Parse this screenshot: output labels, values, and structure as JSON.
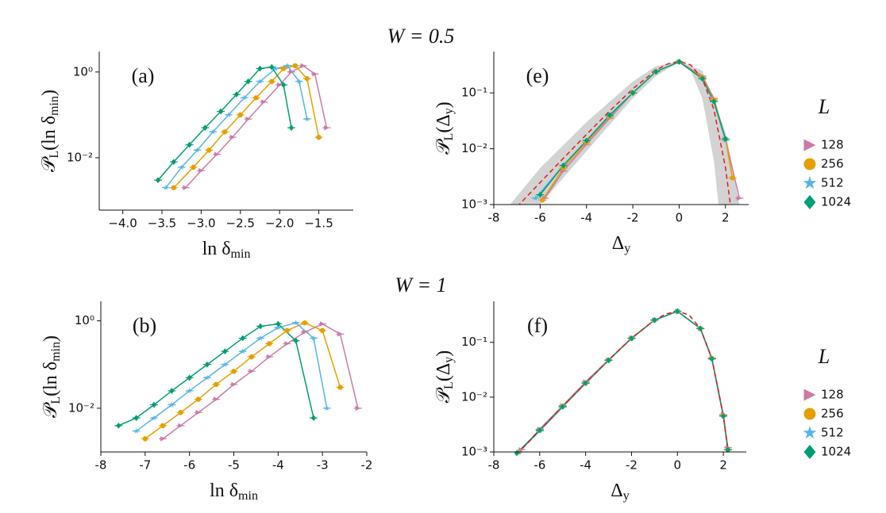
{
  "row_titles": [
    "W = 0.5",
    "W = 1"
  ],
  "chart_data": [
    {
      "type": "scatter",
      "panel": "(a)",
      "log_y": true,
      "xlabel": [
        "ln δ",
        "min"
      ],
      "ylabel": [
        "𝒫",
        "L",
        "(ln δ",
        "min",
        ")"
      ],
      "xlim": [
        -4.3,
        -1.06
      ],
      "ylim": [
        0.0006,
        3
      ],
      "xticks": [
        {
          "value": -4,
          "label": "−4.0"
        },
        {
          "value": -3.5,
          "label": "−3.5"
        },
        {
          "value": -3,
          "label": "−3.0"
        },
        {
          "value": -2.5,
          "label": "−2.5"
        },
        {
          "value": -2,
          "label": "−2.0"
        },
        {
          "value": -1.5,
          "label": "−1.5"
        }
      ],
      "yticks": [
        {
          "value": 0.01,
          "label": "10⁻²"
        },
        {
          "value": 1,
          "label": "10⁰"
        }
      ],
      "series": [
        {
          "name": "128",
          "color": "#cc79a7",
          "marker": "triangle",
          "x": [
            -3.2,
            -3.0,
            -2.8,
            -2.6,
            -2.4,
            -2.2,
            -2.0,
            -1.85,
            -1.7,
            -1.55,
            -1.4
          ],
          "values": [
            0.002,
            0.005,
            0.012,
            0.03,
            0.08,
            0.2,
            0.5,
            1.0,
            1.4,
            0.9,
            0.05
          ]
        },
        {
          "name": "256",
          "color": "#e69f00",
          "marker": "circle",
          "x": [
            -3.35,
            -3.1,
            -2.9,
            -2.7,
            -2.5,
            -2.3,
            -2.1,
            -1.95,
            -1.8,
            -1.65,
            -1.5
          ],
          "values": [
            0.002,
            0.006,
            0.015,
            0.04,
            0.1,
            0.25,
            0.6,
            1.2,
            1.4,
            0.7,
            0.03
          ]
        },
        {
          "name": "512",
          "color": "#56b4e9",
          "marker": "star",
          "x": [
            -3.45,
            -3.25,
            -3.05,
            -2.85,
            -2.65,
            -2.45,
            -2.25,
            -2.05,
            -1.9,
            -1.75,
            -1.65
          ],
          "values": [
            0.002,
            0.006,
            0.015,
            0.04,
            0.1,
            0.25,
            0.6,
            1.2,
            1.4,
            0.6,
            0.08
          ]
        },
        {
          "name": "1024",
          "color": "#009e73",
          "marker": "diamond",
          "x": [
            -3.55,
            -3.35,
            -3.15,
            -2.95,
            -2.75,
            -2.55,
            -2.4,
            -2.25,
            -2.1,
            -1.95,
            -1.85
          ],
          "values": [
            0.003,
            0.008,
            0.02,
            0.05,
            0.12,
            0.3,
            0.6,
            1.2,
            1.3,
            0.5,
            0.05
          ]
        }
      ]
    },
    {
      "type": "scatter",
      "panel": "(e)",
      "log_y": true,
      "legend": true,
      "legend_title": "L",
      "xlabel": [
        "Δ",
        "y"
      ],
      "ylabel": [
        "𝒫",
        "L",
        "(Δ",
        "y",
        ")"
      ],
      "xlim": [
        -8,
        3
      ],
      "ylim": [
        0.001,
        0.55
      ],
      "xticks": [
        -8,
        -6,
        -4,
        -2,
        0,
        2
      ],
      "yticks": [
        {
          "value": 0.001,
          "label": "10⁻³"
        },
        {
          "value": 0.01,
          "label": "10⁻²"
        },
        {
          "value": 0.1,
          "label": "10⁻¹"
        }
      ],
      "band": {
        "color": "#d3d3d3",
        "upper": {
          "x": [
            -7.3,
            -6,
            -4,
            -2,
            -1,
            0,
            1,
            2,
            2.6
          ],
          "values": [
            0.001,
            0.0045,
            0.03,
            0.16,
            0.3,
            0.37,
            0.25,
            0.02,
            0.001
          ]
        },
        "lower": {
          "x": [
            -6,
            -4,
            -2,
            -1,
            0,
            0.5,
            1,
            1.5,
            1.7
          ],
          "values": [
            0.001,
            0.009,
            0.08,
            0.2,
            0.36,
            0.25,
            0.08,
            0.006,
            0.001
          ]
        }
      },
      "reference": {
        "color": "#e41a1c",
        "x": [
          -7,
          -6,
          -5,
          -4,
          -3,
          -2,
          -1,
          -0.5,
          0,
          0.5,
          1,
          1.5,
          2,
          2.2
        ],
        "values": [
          0.00091,
          0.00248,
          0.00674,
          0.018,
          0.0474,
          0.1182,
          0.2546,
          0.3297,
          0.3679,
          0.317,
          0.1794,
          0.0507,
          0.00457,
          0.00109
        ]
      },
      "series": [
        {
          "name": "128",
          "color": "#cc79a7",
          "marker": "triangle",
          "x": [
            -5.8,
            -5,
            -4,
            -3,
            -2,
            -1,
            0,
            1,
            1.5,
            2,
            2.6
          ],
          "values": [
            0.0013,
            0.004,
            0.012,
            0.035,
            0.1,
            0.24,
            0.36,
            0.2,
            0.08,
            0.015,
            0.0013
          ]
        },
        {
          "name": "256",
          "color": "#e69f00",
          "marker": "circle",
          "x": [
            -5.9,
            -5,
            -4,
            -3,
            -2,
            -1,
            0,
            1,
            1.5,
            2,
            2.3
          ],
          "values": [
            0.0012,
            0.0045,
            0.013,
            0.037,
            0.1,
            0.24,
            0.36,
            0.19,
            0.075,
            0.015,
            0.003
          ]
        },
        {
          "name": "512",
          "color": "#56b4e9",
          "marker": "star",
          "x": [
            -6.2,
            -5,
            -4,
            -3,
            -2,
            -1,
            0,
            1,
            1.5,
            2
          ],
          "values": [
            0.0013,
            0.005,
            0.014,
            0.038,
            0.1,
            0.24,
            0.36,
            0.18,
            0.07,
            0.014
          ]
        },
        {
          "name": "1024",
          "color": "#009e73",
          "marker": "diamond",
          "x": [
            -6.0,
            -5,
            -4,
            -3,
            -2,
            -1,
            0,
            1,
            1.5,
            2
          ],
          "values": [
            0.0015,
            0.005,
            0.014,
            0.04,
            0.1,
            0.24,
            0.36,
            0.18,
            0.07,
            0.015
          ]
        }
      ]
    },
    {
      "type": "scatter",
      "panel": "(b)",
      "log_y": true,
      "xlabel": [
        "ln δ",
        "min"
      ],
      "ylabel": [
        "𝒫",
        "L",
        "(ln δ",
        "min",
        ")"
      ],
      "xlim": [
        -8,
        -2
      ],
      "ylim": [
        0.001,
        2.8
      ],
      "xticks": [
        -8,
        -7,
        -6,
        -5,
        -4,
        -3,
        -2
      ],
      "yticks": [
        {
          "value": 0.01,
          "label": "10⁻²"
        },
        {
          "value": 1,
          "label": "10⁰"
        }
      ],
      "series": [
        {
          "name": "128",
          "color": "#cc79a7",
          "marker": "triangle",
          "x": [
            -6.6,
            -6.2,
            -5.8,
            -5.4,
            -5.0,
            -4.6,
            -4.2,
            -3.8,
            -3.4,
            -3.0,
            -2.6,
            -2.2
          ],
          "values": [
            0.002,
            0.004,
            0.008,
            0.016,
            0.035,
            0.07,
            0.15,
            0.3,
            0.55,
            0.85,
            0.5,
            0.01
          ]
        },
        {
          "name": "256",
          "color": "#e69f00",
          "marker": "circle",
          "x": [
            -7.0,
            -6.6,
            -6.2,
            -5.8,
            -5.4,
            -5.0,
            -4.6,
            -4.2,
            -3.8,
            -3.4,
            -3.0,
            -2.6
          ],
          "values": [
            0.002,
            0.004,
            0.008,
            0.016,
            0.035,
            0.07,
            0.15,
            0.3,
            0.6,
            0.9,
            0.6,
            0.03
          ]
        },
        {
          "name": "512",
          "color": "#56b4e9",
          "marker": "star",
          "x": [
            -7.2,
            -6.8,
            -6.4,
            -6.0,
            -5.6,
            -5.2,
            -4.8,
            -4.4,
            -4.0,
            -3.6,
            -3.2,
            -2.9
          ],
          "values": [
            0.003,
            0.006,
            0.012,
            0.025,
            0.05,
            0.1,
            0.2,
            0.4,
            0.7,
            0.9,
            0.4,
            0.01
          ]
        },
        {
          "name": "1024",
          "color": "#009e73",
          "marker": "diamond",
          "x": [
            -7.6,
            -7.2,
            -6.8,
            -6.4,
            -6.0,
            -5.6,
            -5.2,
            -4.8,
            -4.4,
            -4.0,
            -3.6,
            -3.2
          ],
          "values": [
            0.004,
            0.006,
            0.012,
            0.025,
            0.05,
            0.1,
            0.2,
            0.4,
            0.75,
            0.85,
            0.35,
            0.006
          ]
        }
      ]
    },
    {
      "type": "scatter",
      "panel": "(f)",
      "log_y": true,
      "legend": true,
      "legend_title": "L",
      "xlabel": [
        "Δ",
        "y"
      ],
      "ylabel": [
        "𝒫",
        "L",
        "(Δ",
        "y",
        ")"
      ],
      "xlim": [
        -8,
        3
      ],
      "ylim": [
        0.001,
        0.56
      ],
      "xticks": [
        -8,
        -6,
        -4,
        -2,
        0,
        2
      ],
      "yticks": [
        {
          "value": 0.001,
          "label": "10⁻³"
        },
        {
          "value": 0.01,
          "label": "10⁻²"
        },
        {
          "value": 0.1,
          "label": "10⁻¹"
        }
      ],
      "reference": {
        "color": "#e41a1c",
        "x": [
          -7,
          -6,
          -5,
          -4,
          -3,
          -2,
          -1,
          -0.5,
          0,
          0.5,
          1,
          1.5,
          2,
          2.2
        ],
        "values": [
          0.00091,
          0.00248,
          0.00674,
          0.018,
          0.0474,
          0.1182,
          0.2546,
          0.3297,
          0.3679,
          0.317,
          0.1794,
          0.0507,
          0.00457,
          0.00109
        ]
      },
      "series": [
        {
          "name": "128",
          "color": "#cc79a7",
          "marker": "triangle",
          "x": [
            -6.8,
            -6,
            -5,
            -4,
            -3,
            -2,
            -1,
            0,
            1,
            1.5,
            2,
            2.2
          ],
          "values": [
            0.0011,
            0.0026,
            0.007,
            0.019,
            0.048,
            0.12,
            0.255,
            0.37,
            0.18,
            0.052,
            0.0048,
            0.0012
          ]
        },
        {
          "name": "256",
          "color": "#e69f00",
          "marker": "circle",
          "x": [
            -6.9,
            -6,
            -5,
            -4,
            -3,
            -2,
            -1,
            0,
            1,
            1.5,
            2,
            2.2
          ],
          "values": [
            0.001,
            0.0025,
            0.0068,
            0.018,
            0.047,
            0.118,
            0.254,
            0.368,
            0.179,
            0.051,
            0.0046,
            0.0011
          ]
        },
        {
          "name": "512",
          "color": "#56b4e9",
          "marker": "star",
          "x": [
            -6.9,
            -6,
            -5,
            -4,
            -3,
            -2,
            -1,
            0,
            1,
            1.5,
            2,
            2.2
          ],
          "values": [
            0.001,
            0.0024,
            0.0066,
            0.018,
            0.047,
            0.118,
            0.254,
            0.367,
            0.178,
            0.05,
            0.0045,
            0.0011
          ]
        },
        {
          "name": "1024",
          "color": "#009e73",
          "marker": "diamond",
          "x": [
            -7.0,
            -6,
            -5,
            -4,
            -3,
            -2,
            -1,
            0,
            1,
            1.5,
            2,
            2.2
          ],
          "values": [
            0.00095,
            0.0025,
            0.0067,
            0.018,
            0.047,
            0.118,
            0.254,
            0.368,
            0.179,
            0.05,
            0.0045,
            0.0011
          ]
        }
      ]
    }
  ]
}
